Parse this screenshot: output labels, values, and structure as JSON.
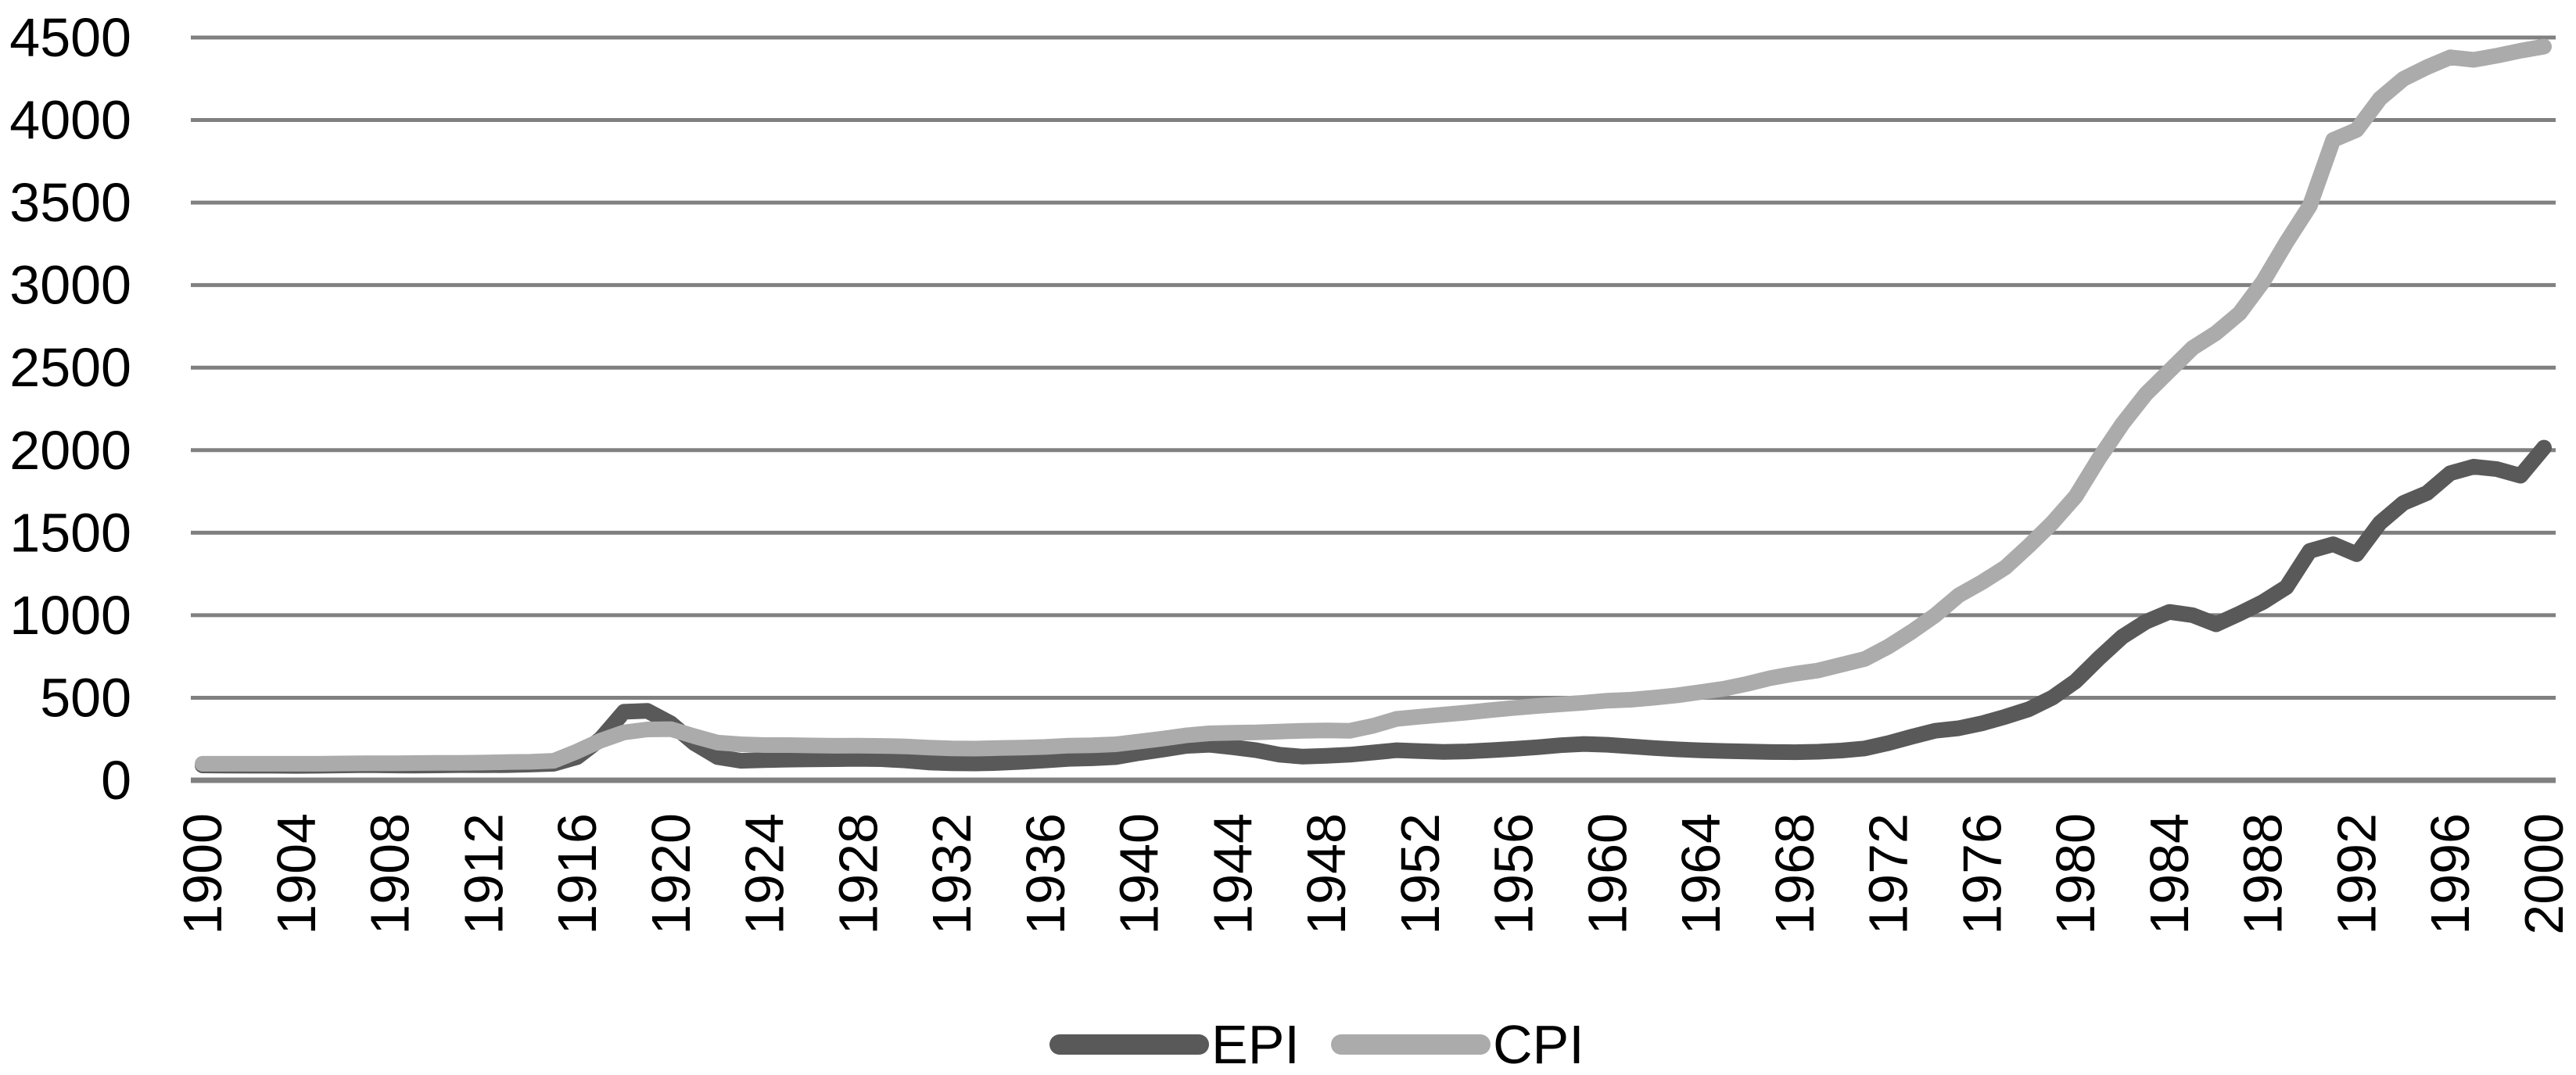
{
  "chart_data": {
    "type": "line",
    "title": "",
    "xlabel": "",
    "ylabel": "",
    "grid": "horizontal",
    "legend_position": "bottom-center",
    "ylim": [
      0,
      4500
    ],
    "y_ticks": [
      0,
      500,
      1000,
      1500,
      2000,
      2500,
      3000,
      3500,
      4000,
      4500
    ],
    "x_tick_labels": [
      "1900",
      "1904",
      "1908",
      "1912",
      "1916",
      "1920",
      "1924",
      "1928",
      "1932",
      "1936",
      "1940",
      "1944",
      "1948",
      "1952",
      "1956",
      "1960",
      "1964",
      "1968",
      "1972",
      "1976",
      "1980",
      "1984",
      "1988",
      "1992",
      "1996",
      "2000"
    ],
    "years": [
      1900,
      1901,
      1902,
      1903,
      1904,
      1905,
      1906,
      1907,
      1908,
      1909,
      1910,
      1911,
      1912,
      1913,
      1914,
      1915,
      1916,
      1917,
      1918,
      1919,
      1920,
      1921,
      1922,
      1923,
      1924,
      1925,
      1926,
      1927,
      1928,
      1929,
      1930,
      1931,
      1932,
      1933,
      1934,
      1935,
      1936,
      1937,
      1938,
      1939,
      1940,
      1941,
      1942,
      1943,
      1944,
      1945,
      1946,
      1947,
      1948,
      1949,
      1950,
      1951,
      1952,
      1953,
      1954,
      1955,
      1956,
      1957,
      1958,
      1959,
      1960,
      1961,
      1962,
      1963,
      1964,
      1965,
      1966,
      1967,
      1968,
      1969,
      1970,
      1971,
      1972,
      1973,
      1974,
      1975,
      1976,
      1977,
      1978,
      1979,
      1980,
      1981,
      1982,
      1983,
      1984,
      1985,
      1986,
      1987,
      1988,
      1989,
      1990,
      1991,
      1992,
      1993,
      1994,
      1995,
      1996,
      1997,
      1998,
      1999,
      2000
    ],
    "series": [
      {
        "name": "EPI",
        "color": "#595959",
        "values": [
          90,
          89,
          88,
          88,
          87,
          88,
          90,
          92,
          90,
          89,
          90,
          92,
          91,
          92,
          95,
          100,
          140,
          250,
          415,
          420,
          345,
          225,
          140,
          118,
          122,
          125,
          127,
          128,
          130,
          128,
          120,
          108,
          103,
          102,
          105,
          112,
          120,
          130,
          133,
          140,
          165,
          185,
          208,
          215,
          200,
          182,
          155,
          143,
          148,
          155,
          168,
          182,
          176,
          172,
          175,
          182,
          190,
          200,
          212,
          220,
          215,
          205,
          195,
          187,
          181,
          177,
          174,
          171,
          170,
          173,
          180,
          193,
          225,
          264,
          300,
          315,
          345,
          385,
          430,
          500,
          600,
          740,
          870,
          960,
          1020,
          1000,
          945,
          1010,
          1080,
          1170,
          1390,
          1430,
          1370,
          1560,
          1680,
          1740,
          1860,
          1900,
          1885,
          1845,
          2015
        ]
      },
      {
        "name": "CPI",
        "color": "#ababab",
        "values": [
          100,
          100,
          100,
          100,
          100,
          100,
          102,
          103,
          103,
          104,
          105,
          105,
          107,
          110,
          112,
          118,
          175,
          240,
          290,
          308,
          310,
          267,
          228,
          218,
          213,
          213,
          211,
          209,
          210,
          208,
          205,
          198,
          193,
          192,
          195,
          198,
          202,
          210,
          212,
          218,
          235,
          252,
          272,
          284,
          288,
          290,
          295,
          300,
          302,
          300,
          330,
          372,
          385,
          398,
          410,
          425,
          438,
          450,
          460,
          470,
          482,
          488,
          500,
          515,
          535,
          555,
          585,
          620,
          645,
          665,
          700,
          735,
          810,
          900,
          1000,
          1120,
          1200,
          1290,
          1420,
          1560,
          1720,
          1950,
          2160,
          2340,
          2480,
          2620,
          2710,
          2830,
          3020,
          3260,
          3480,
          3880,
          3940,
          4130,
          4250,
          4320,
          4380,
          4365,
          4390,
          4420,
          4445
        ]
      }
    ],
    "colors": {
      "gridline": "#808080",
      "axis_line": "#808080",
      "text": "#000000",
      "background": "#ffffff"
    }
  }
}
